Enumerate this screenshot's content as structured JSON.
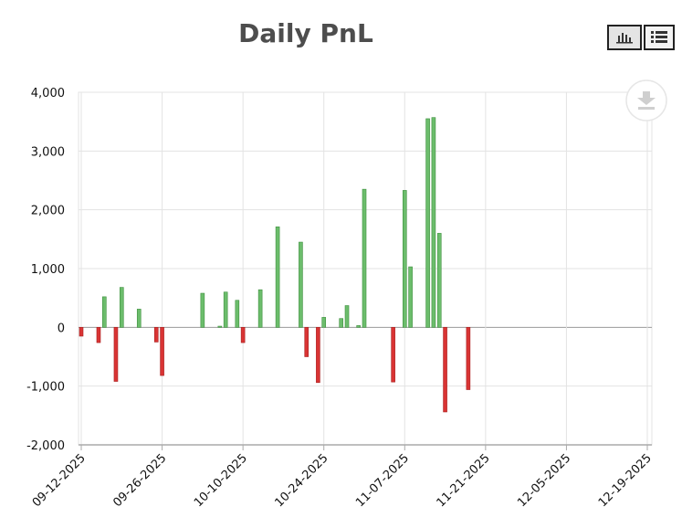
{
  "header": {
    "title": "Daily PnL",
    "bar_view_icon": "bar-chart-icon",
    "table_view_icon": "list-icon",
    "download_icon": "download-icon"
  },
  "colors": {
    "positive": "#6cbd6c",
    "positive_edge": "#3d8f3d",
    "negative": "#d93434",
    "negative_edge": "#a82020",
    "grid": "#e3e3e3",
    "axis": "#aaaaaa"
  },
  "chart_data": {
    "type": "bar",
    "title": "Daily PnL",
    "xlabel": "",
    "ylabel": "",
    "x_axis": {
      "type": "date",
      "range": [
        "2025-09-12",
        "2025-12-19"
      ],
      "ticks": [
        "09-12-2025",
        "09-26-2025",
        "10-10-2025",
        "10-24-2025",
        "11-07-2025",
        "11-21-2025",
        "12-05-2025",
        "12-19-2025"
      ]
    },
    "ylim": [
      -2000,
      4000
    ],
    "yticks": [
      "4,000",
      "3,000",
      "2,000",
      "1,000",
      "0",
      "-1,000",
      "-2,000"
    ],
    "grid": true,
    "points": [
      {
        "date": "2025-09-12",
        "value": -150
      },
      {
        "date": "2025-09-15",
        "value": -260
      },
      {
        "date": "2025-09-16",
        "value": 520
      },
      {
        "date": "2025-09-18",
        "value": -920
      },
      {
        "date": "2025-09-19",
        "value": 680
      },
      {
        "date": "2025-09-22",
        "value": 310
      },
      {
        "date": "2025-09-25",
        "value": -250
      },
      {
        "date": "2025-09-26",
        "value": -820
      },
      {
        "date": "2025-10-03",
        "value": 580
      },
      {
        "date": "2025-10-06",
        "value": 20
      },
      {
        "date": "2025-10-07",
        "value": 600
      },
      {
        "date": "2025-10-09",
        "value": 460
      },
      {
        "date": "2025-10-10",
        "value": -260
      },
      {
        "date": "2025-10-13",
        "value": 640
      },
      {
        "date": "2025-10-16",
        "value": 1710
      },
      {
        "date": "2025-10-20",
        "value": 1450
      },
      {
        "date": "2025-10-21",
        "value": -500
      },
      {
        "date": "2025-10-23",
        "value": -940
      },
      {
        "date": "2025-10-24",
        "value": 170
      },
      {
        "date": "2025-10-27",
        "value": 150
      },
      {
        "date": "2025-10-28",
        "value": 370
      },
      {
        "date": "2025-10-30",
        "value": 30
      },
      {
        "date": "2025-10-31",
        "value": 2350
      },
      {
        "date": "2025-11-05",
        "value": -930
      },
      {
        "date": "2025-11-07",
        "value": 2330
      },
      {
        "date": "2025-11-08",
        "value": 1030
      },
      {
        "date": "2025-11-11",
        "value": 3550
      },
      {
        "date": "2025-11-12",
        "value": 3570
      },
      {
        "date": "2025-11-13",
        "value": 1600
      },
      {
        "date": "2025-11-14",
        "value": -1440
      },
      {
        "date": "2025-11-18",
        "value": -1060
      }
    ]
  }
}
